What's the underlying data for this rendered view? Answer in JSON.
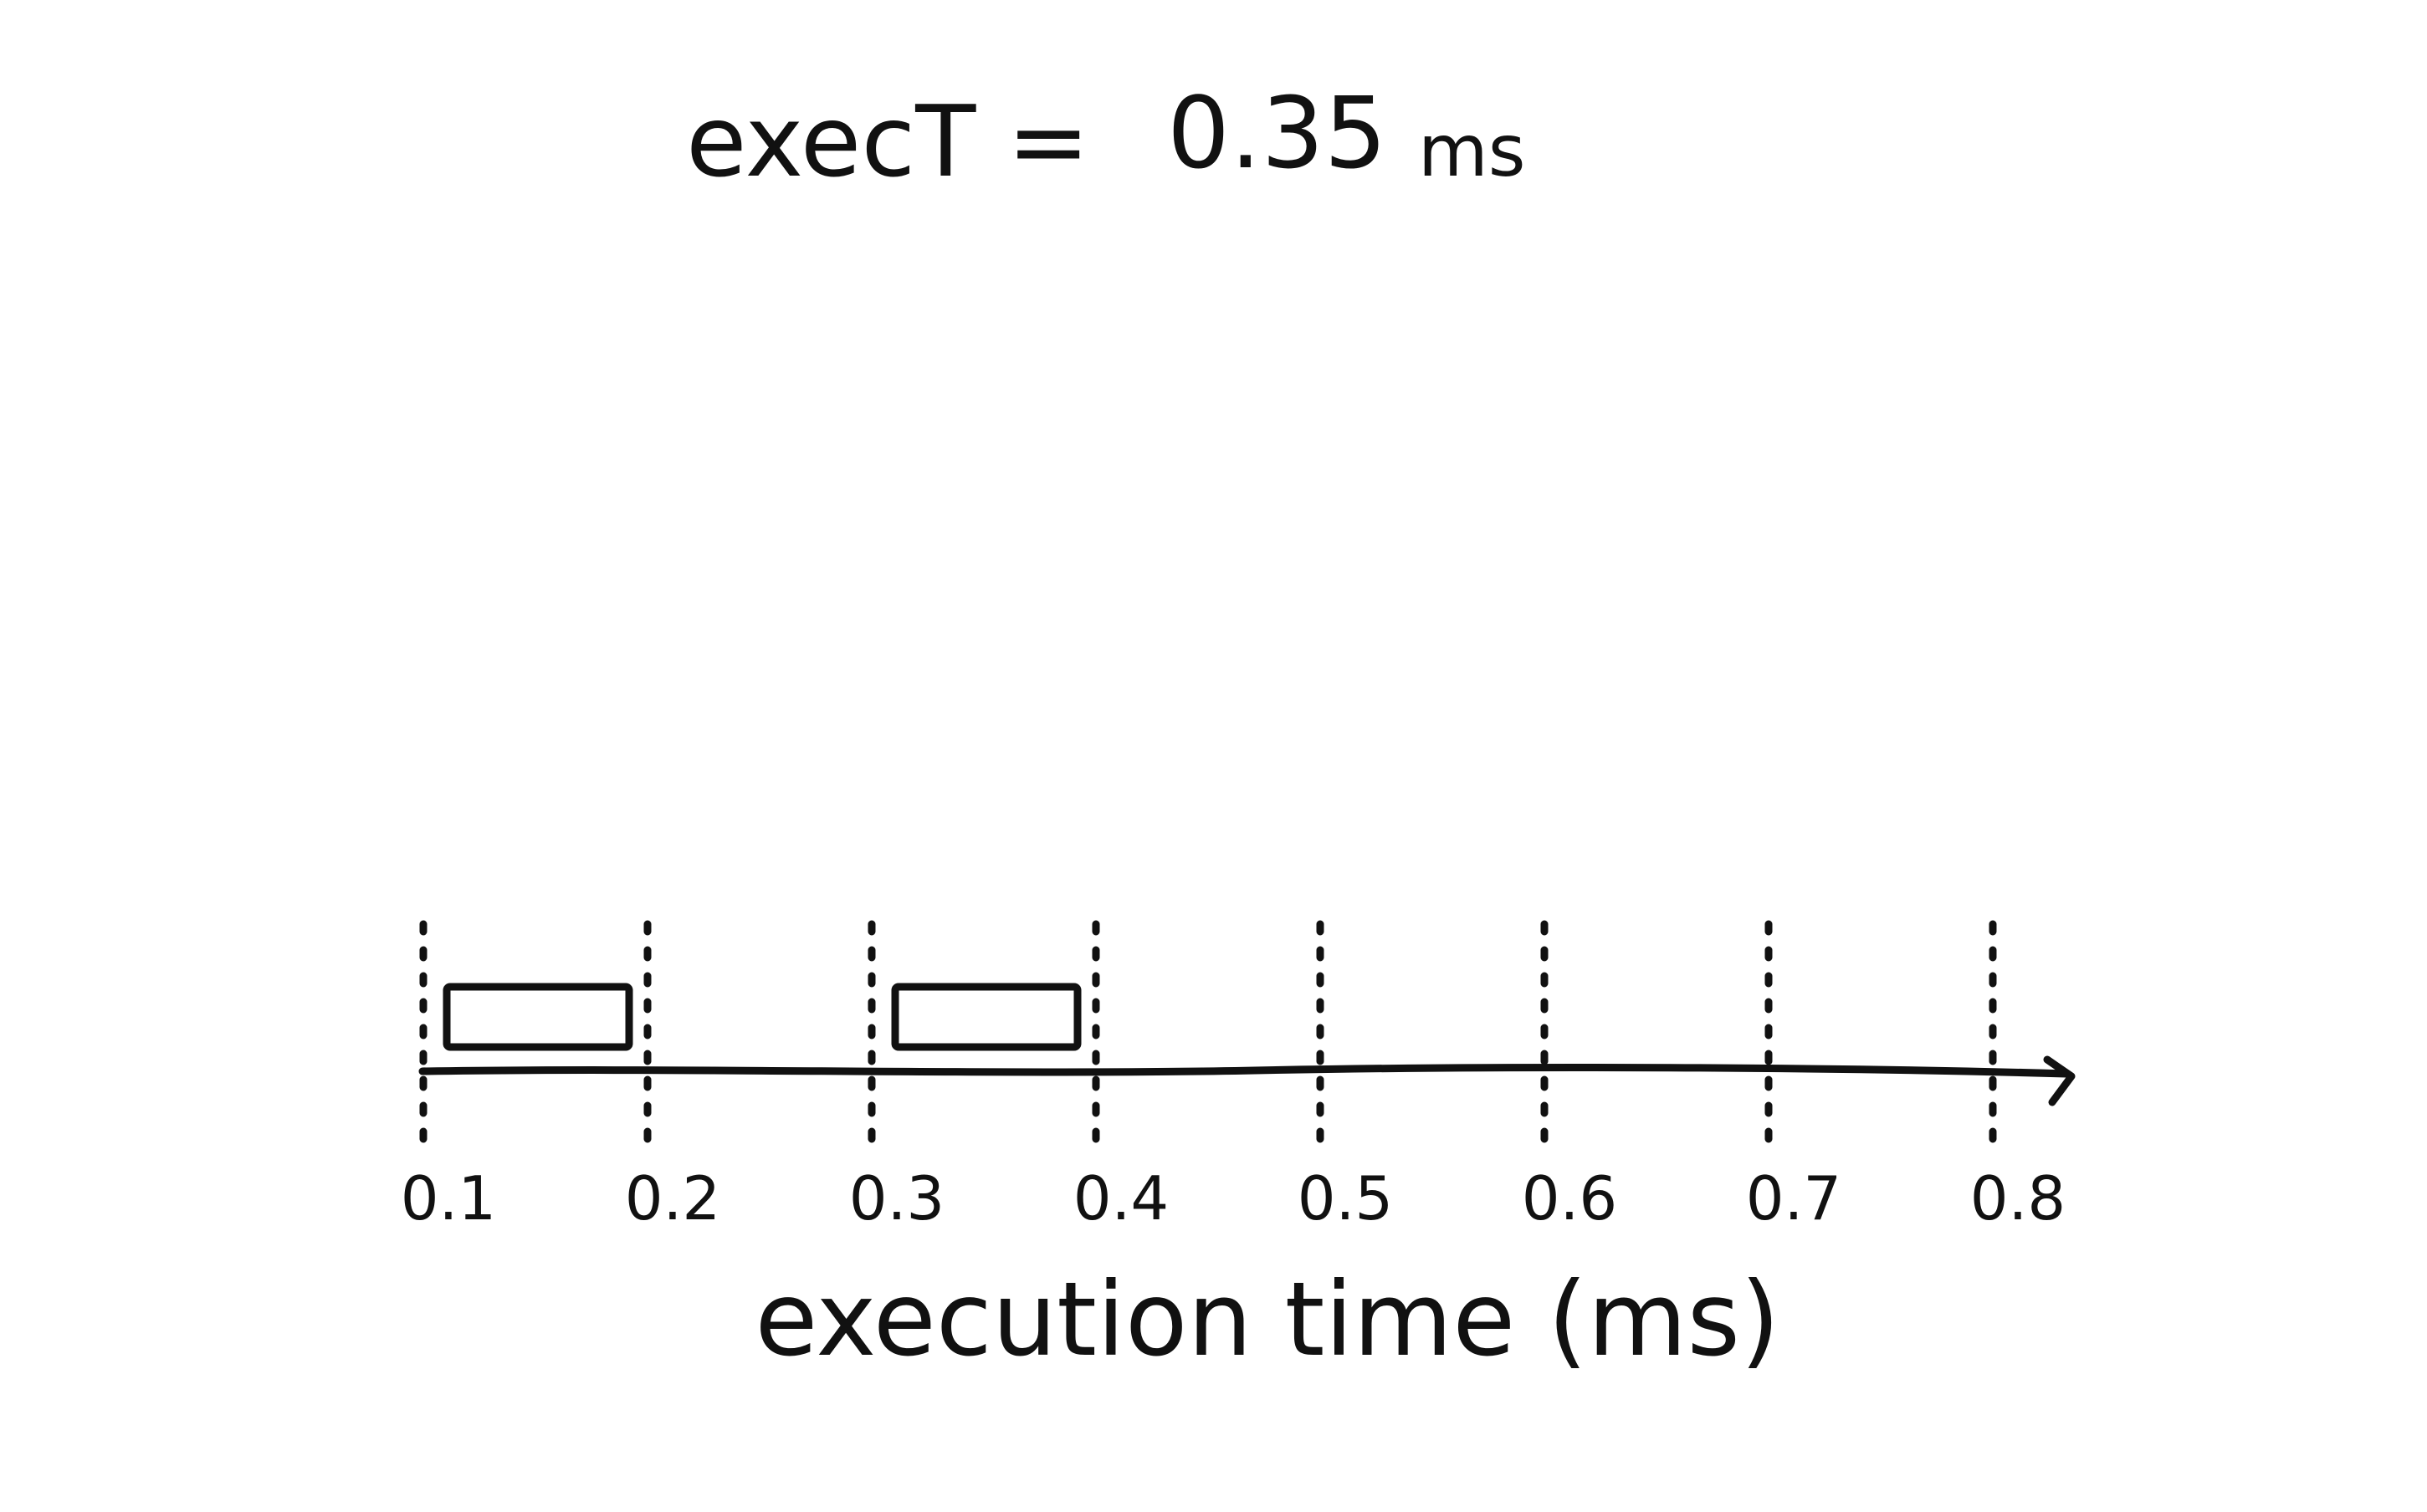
{
  "header": {
    "label": "execT =",
    "value": "0.35",
    "unit": "ms"
  },
  "timeline": {
    "axis_label": "execution time (ms)",
    "ticks": [
      {
        "value": 0.1,
        "label": "0.1"
      },
      {
        "value": 0.2,
        "label": "0.2"
      },
      {
        "value": 0.3,
        "label": "0.3"
      },
      {
        "value": 0.4,
        "label": "0.4"
      },
      {
        "value": 0.5,
        "label": "0.5"
      },
      {
        "value": 0.6,
        "label": "0.6"
      },
      {
        "value": 0.7,
        "label": "0.7"
      },
      {
        "value": 0.8,
        "label": "0.8"
      }
    ],
    "intervals": [
      {
        "start": 0.1,
        "end": 0.2
      },
      {
        "start": 0.3,
        "end": 0.4
      }
    ],
    "arrow": "right",
    "ink_color": "#111111"
  }
}
